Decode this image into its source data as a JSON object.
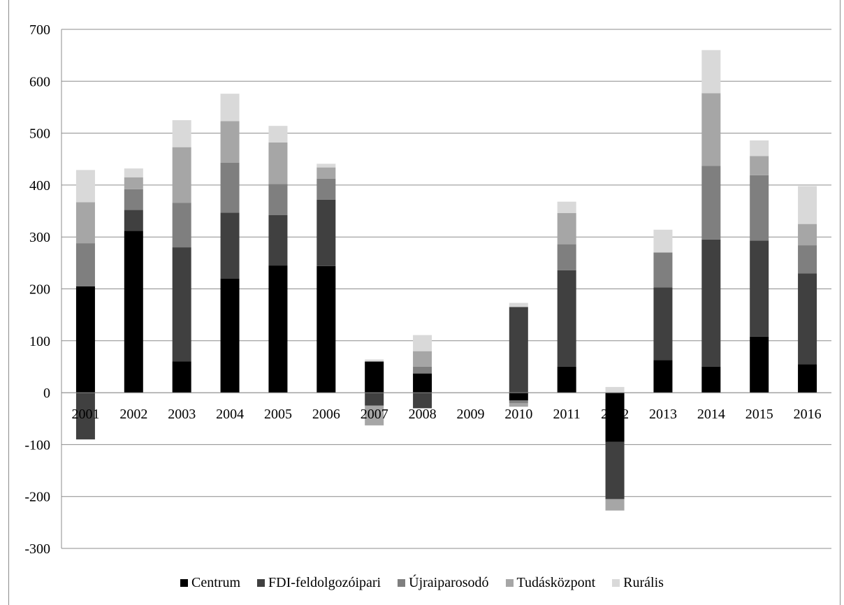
{
  "chart_data": {
    "type": "bar",
    "stacked": true,
    "title": "",
    "xlabel": "",
    "ylabel": "",
    "ylim": [
      -300,
      700
    ],
    "yticks": [
      -300,
      -200,
      -100,
      0,
      100,
      200,
      300,
      400,
      500,
      600,
      700
    ],
    "grid": true,
    "legend_position": "bottom",
    "categories": [
      "2001",
      "2002",
      "2003",
      "2004",
      "2005",
      "2006",
      "2007",
      "2008",
      "2009",
      "2010",
      "2011",
      "2012",
      "2013",
      "2014",
      "2015",
      "2016"
    ],
    "series": [
      {
        "name": "Centrum",
        "color": "#000000",
        "values": [
          205,
          312,
          60,
          220,
          245,
          244,
          60,
          37,
          0,
          -15,
          50,
          -95,
          63,
          50,
          108,
          55
        ]
      },
      {
        "name": "FDI-feldolgozóipari",
        "color": "#404040",
        "values": [
          -90,
          40,
          220,
          127,
          97,
          128,
          -25,
          -30,
          0,
          165,
          186,
          -110,
          140,
          245,
          185,
          175
        ]
      },
      {
        "name": "Újraiparosodó",
        "color": "#7f7f7f",
        "values": [
          83,
          40,
          86,
          96,
          60,
          40,
          0,
          13,
          0,
          -5,
          50,
          0,
          67,
          142,
          126,
          54
        ]
      },
      {
        "name": "Tudásközpont",
        "color": "#a6a6a6",
        "values": [
          79,
          23,
          107,
          80,
          80,
          22,
          -38,
          30,
          0,
          -7,
          60,
          -22,
          0,
          140,
          37,
          41
        ]
      },
      {
        "name": "Rurális",
        "color": "#d9d9d9",
        "values": [
          62,
          17,
          52,
          53,
          32,
          7,
          4,
          31,
          0,
          8,
          22,
          11,
          44,
          83,
          30,
          73
        ]
      }
    ]
  }
}
